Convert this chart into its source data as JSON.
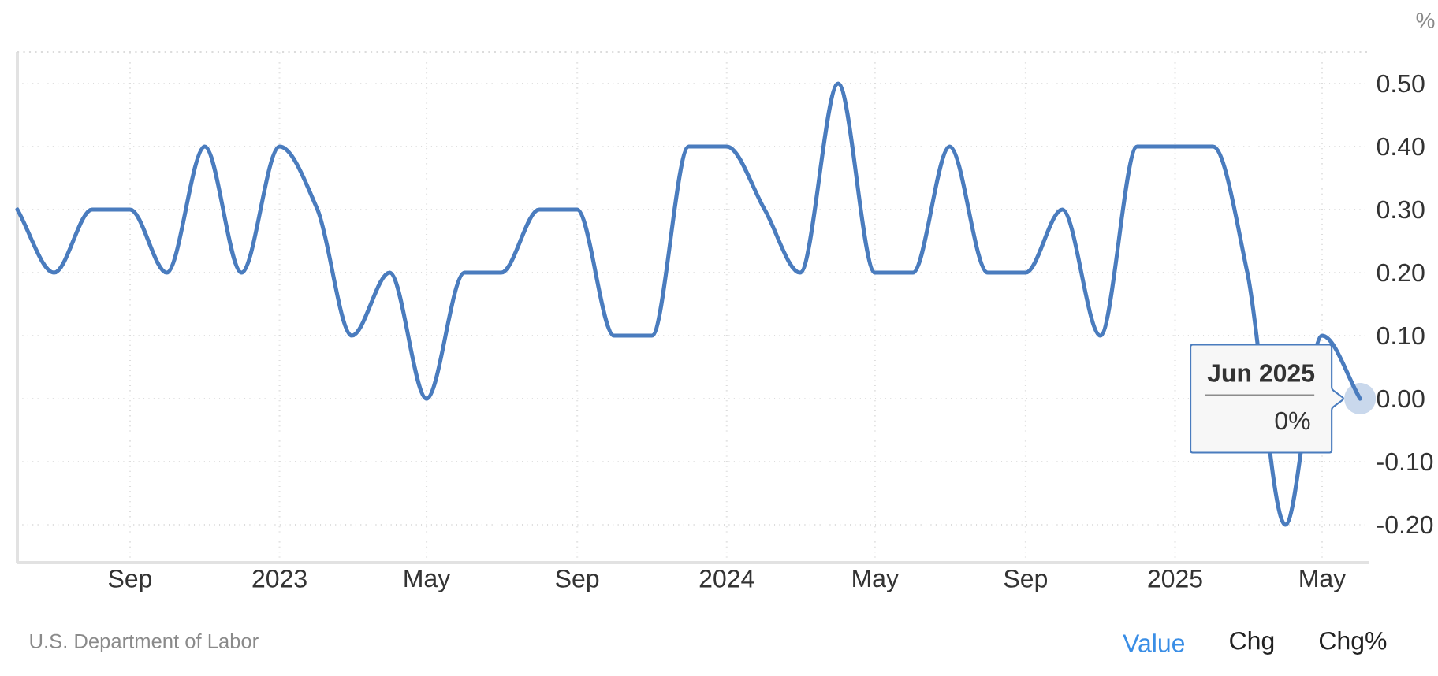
{
  "chart_data": {
    "type": "line",
    "ylabel": "%",
    "x": [
      "2022-06",
      "2022-07",
      "2022-08",
      "2022-09",
      "2022-10",
      "2022-11",
      "2022-12",
      "2023-01",
      "2023-02",
      "2023-03",
      "2023-04",
      "2023-05",
      "2023-06",
      "2023-07",
      "2023-08",
      "2023-09",
      "2023-10",
      "2023-11",
      "2023-12",
      "2024-01",
      "2024-02",
      "2024-03",
      "2024-04",
      "2024-05",
      "2024-06",
      "2024-07",
      "2024-08",
      "2024-09",
      "2024-10",
      "2024-11",
      "2024-12",
      "2025-01",
      "2025-02",
      "2025-03",
      "2025-04",
      "2025-05",
      "2025-06"
    ],
    "values": [
      0.3,
      0.2,
      0.3,
      0.3,
      0.2,
      0.4,
      0.2,
      0.4,
      0.3,
      0.1,
      0.2,
      0.0,
      0.2,
      0.2,
      0.3,
      0.3,
      0.1,
      0.1,
      0.4,
      0.4,
      0.3,
      0.2,
      0.5,
      0.2,
      0.2,
      0.4,
      0.2,
      0.2,
      0.3,
      0.1,
      0.4,
      0.4,
      0.4,
      0.2,
      -0.2,
      0.1,
      0.0
    ],
    "color": "#4a7cbe",
    "line_style": "solid",
    "grid": true,
    "xlim": [
      "2022-06-01",
      "2025-06-08"
    ],
    "xticks": [
      {
        "value": "2022-09",
        "label": "Sep"
      },
      {
        "value": "2023",
        "label": "2023"
      },
      {
        "value": "2023-05",
        "label": "May"
      },
      {
        "value": "2023-09",
        "label": "Sep"
      },
      {
        "value": "2024",
        "label": "2024"
      },
      {
        "value": "2024-05",
        "label": "May"
      },
      {
        "value": "2024-09",
        "label": "Sep"
      },
      {
        "value": "2025",
        "label": "2025"
      },
      {
        "value": "2025-05",
        "label": "May"
      }
    ],
    "ylim": [
      -0.26,
      0.55
    ],
    "yticks": [
      {
        "value": -0.2,
        "label": "-0.20"
      },
      {
        "value": -0.1,
        "label": "-0.10"
      },
      {
        "value": 0,
        "label": "0.00"
      },
      {
        "value": 0.1,
        "label": "0.10"
      },
      {
        "value": 0.2,
        "label": "0.20"
      },
      {
        "value": 0.3,
        "label": "0.30"
      },
      {
        "value": 0.4,
        "label": "0.40"
      },
      {
        "value": 0.5,
        "label": "0.50"
      }
    ],
    "annotations": [
      {
        "text": "Jun 2025",
        "x": "2025-06",
        "y": 0
      },
      {
        "text": "0%",
        "x": "2025-06",
        "y": 0
      },
      "U.S. Department of Labor",
      "Value",
      "Chg",
      "Chg%"
    ]
  }
}
